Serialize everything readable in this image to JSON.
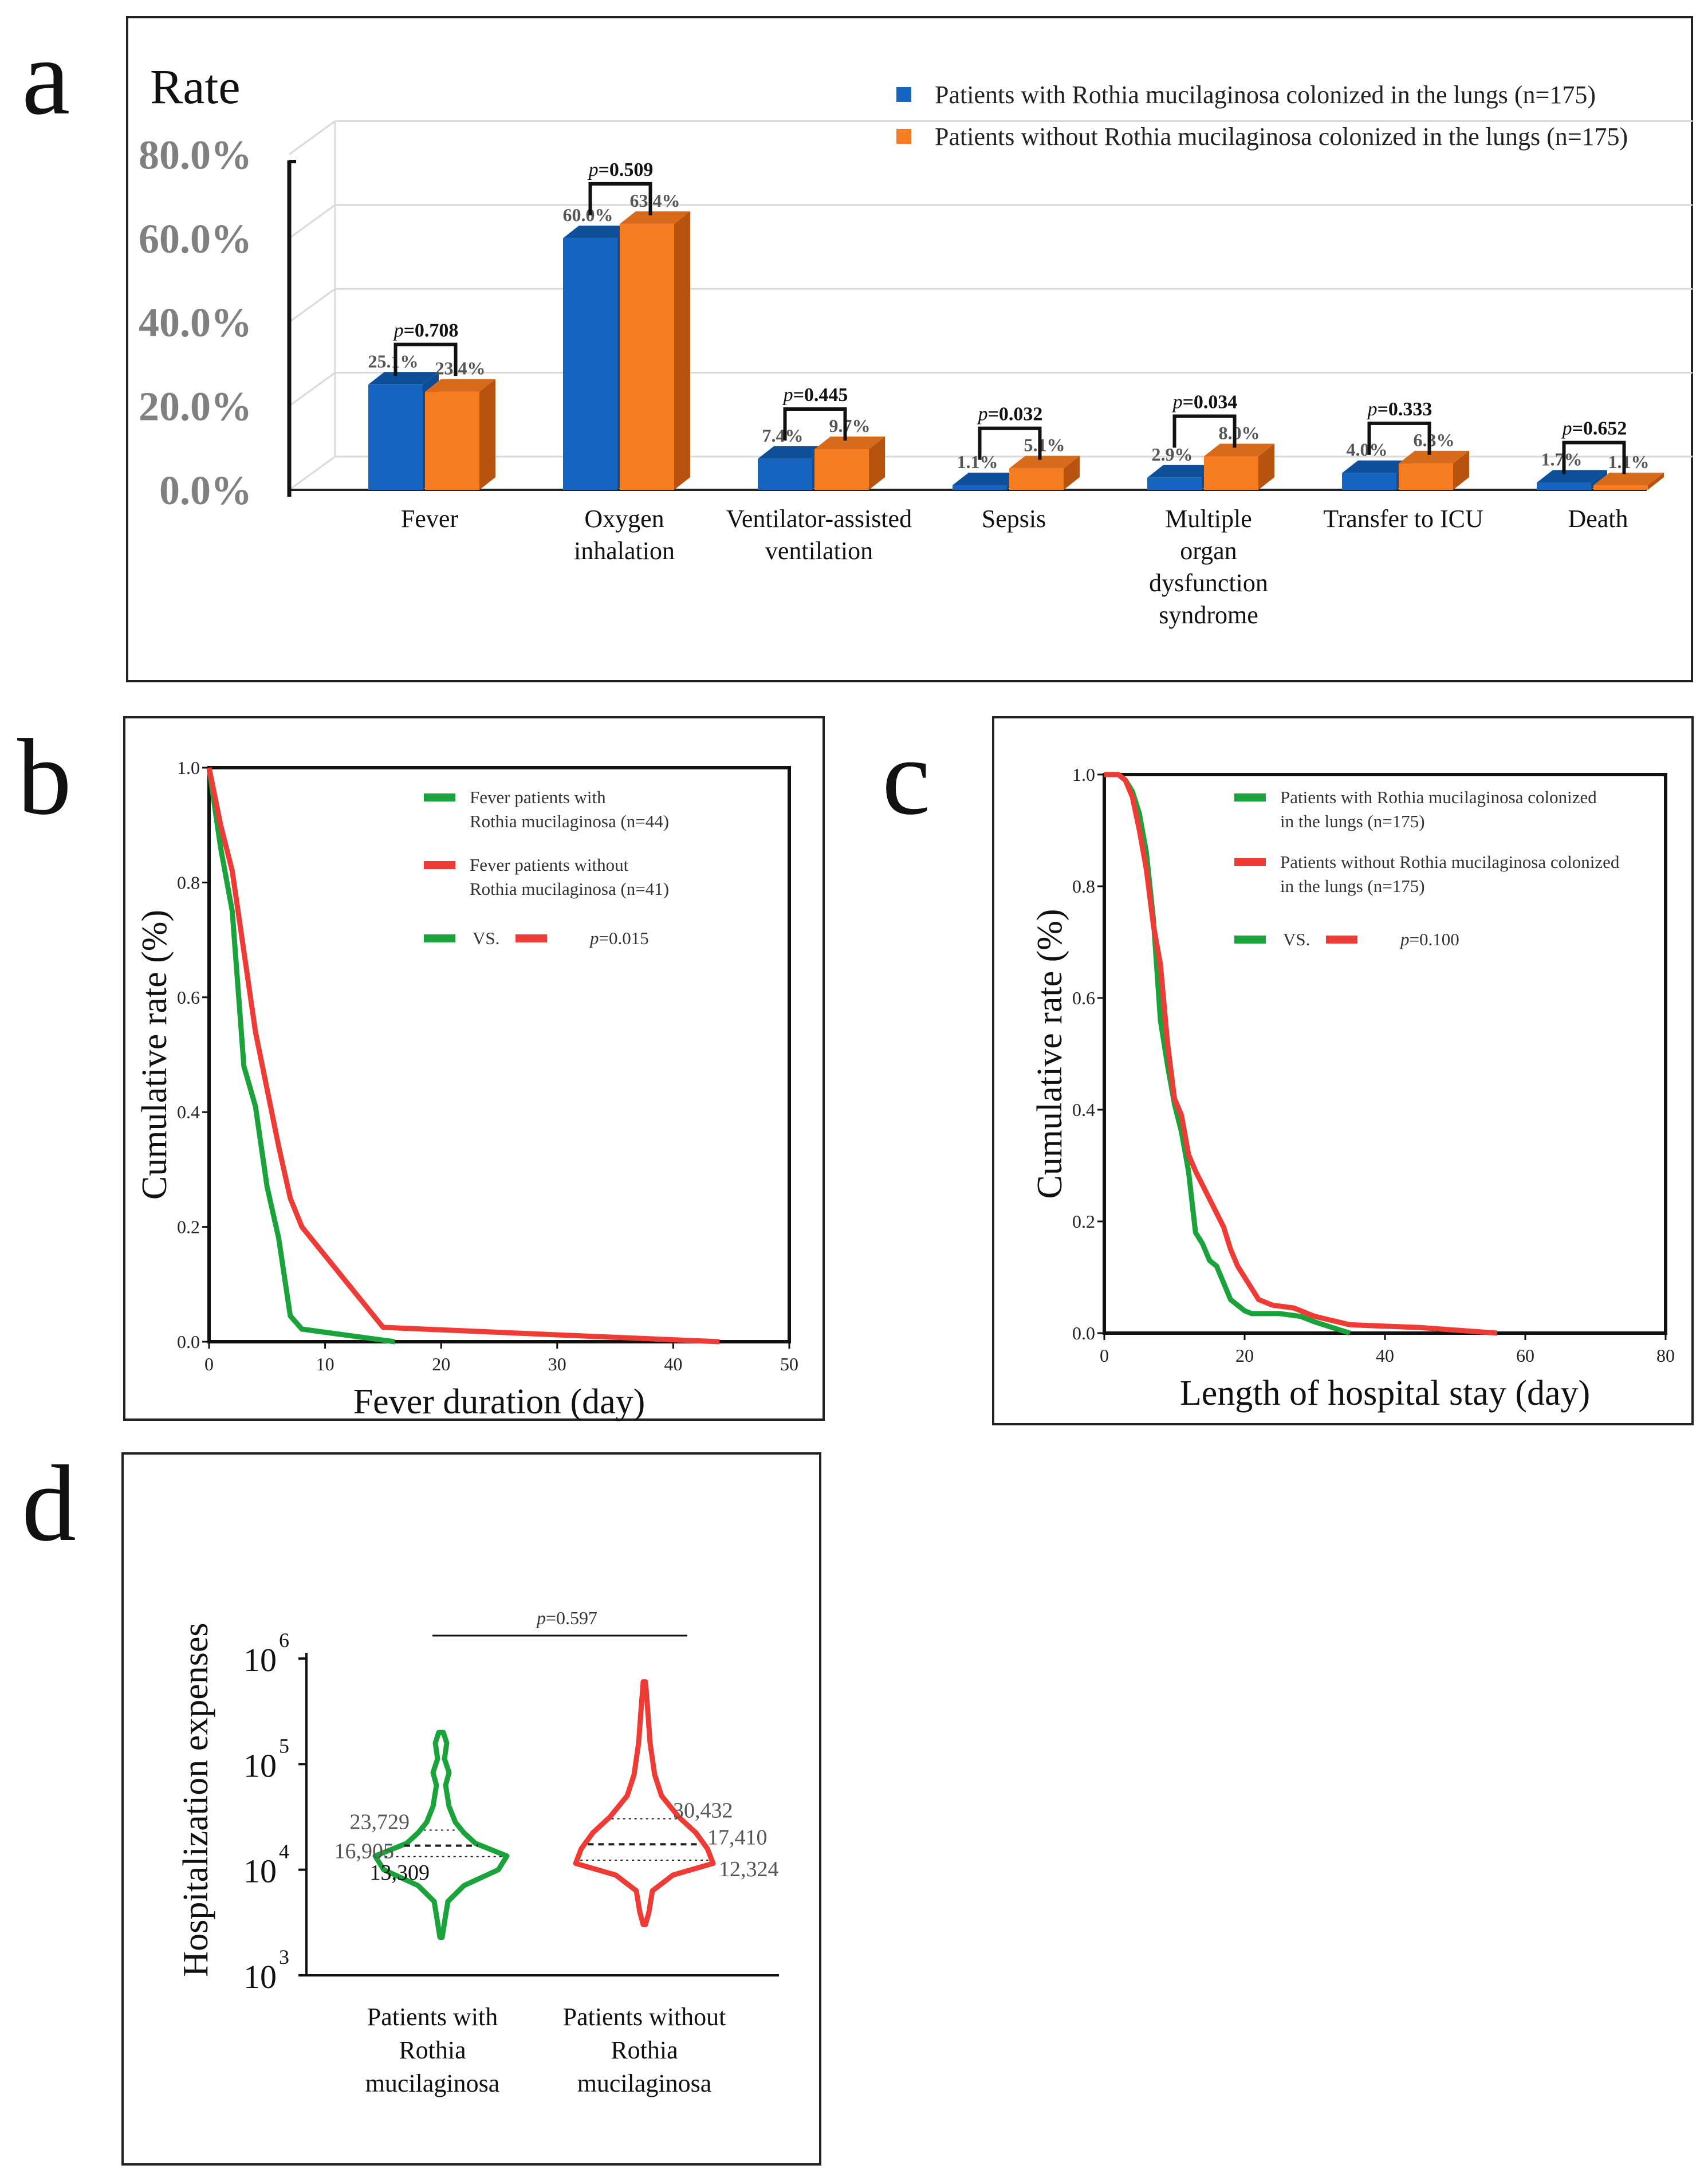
{
  "panels": {
    "a": "a",
    "b": "b",
    "c": "c",
    "d": "d"
  },
  "colors": {
    "blue": "#1565c0",
    "blue_top": "#0d4c94",
    "orange": "#f57c20",
    "orange_dark": "#b8520f",
    "green": "#1aa33a",
    "red": "#ef3b35"
  },
  "chart_data": [
    {
      "type": "bar",
      "y_title": "Rate",
      "yticks": [
        "0.0%",
        "20.0%",
        "40.0%",
        "60.0%",
        "80.0%"
      ],
      "ylim": [
        0,
        80
      ],
      "categories": [
        "Fever",
        "Oxygen inhalation",
        "Ventilator-assisted ventilation",
        "Sepsis",
        "Multiple organ dysfunction syndrome",
        "Transfer to ICU",
        "Death"
      ],
      "category_lines": [
        [
          "Fever"
        ],
        [
          "Oxygen",
          "inhalation"
        ],
        [
          "Ventilator-assisted",
          "ventilation"
        ],
        [
          "Sepsis"
        ],
        [
          "Multiple",
          "organ",
          "dysfunction",
          "syndrome"
        ],
        [
          "Transfer to ICU"
        ],
        [
          "Death"
        ]
      ],
      "series": [
        {
          "name": "Patients with Rothia mucilaginosa colonized in the lungs (n=175)",
          "values": [
            25.1,
            60.0,
            7.4,
            1.1,
            2.9,
            4.0,
            1.7
          ],
          "labels": [
            "25.1%",
            "60.0%",
            "7.4%",
            "1.1%",
            "2.9%",
            "4.0%",
            "1.7%"
          ]
        },
        {
          "name": "Patients without Rothia mucilaginosa colonized in the lungs (n=175)",
          "values": [
            23.4,
            63.4,
            9.7,
            5.1,
            8.0,
            6.3,
            1.1
          ],
          "labels": [
            "23.4%",
            "63.4%",
            "9.7%",
            "5.1%",
            "8.0%",
            "6.3%",
            "1.1%"
          ]
        }
      ],
      "p_values": [
        "0.708",
        "0.509",
        "0.445",
        "0.032",
        "0.034",
        "0.333",
        "0.652"
      ],
      "p_prefix": "p",
      "p_eq": "=",
      "legend_position": "top-right",
      "grid": true
    },
    {
      "type": "line",
      "xlabel": "Fever duration (day)",
      "ylabel": "Cumulative rate (%)",
      "xlim": [
        0,
        50
      ],
      "ylim": [
        0,
        1.0
      ],
      "xticks": [
        "0",
        "10",
        "20",
        "30",
        "40",
        "50"
      ],
      "yticks": [
        "0.0",
        "0.2",
        "0.4",
        "0.6",
        "0.8",
        "1.0"
      ],
      "series": [
        {
          "name_lines": [
            "Fever patients with",
            "Rothia mucilaginosa (n=44)"
          ],
          "x": [
            0,
            1,
            2,
            3,
            4,
            5,
            6,
            7,
            8,
            16
          ],
          "y": [
            1.0,
            0.86,
            0.75,
            0.48,
            0.41,
            0.27,
            0.18,
            0.045,
            0.022,
            0.0
          ]
        },
        {
          "name_lines": [
            "Fever patients without",
            "Rothia mucilaginosa (n=41)"
          ],
          "x": [
            0,
            1,
            2,
            3,
            4,
            5,
            6,
            7,
            8,
            15,
            30,
            44
          ],
          "y": [
            1.0,
            0.9,
            0.82,
            0.68,
            0.54,
            0.44,
            0.34,
            0.25,
            0.2,
            0.025,
            0.012,
            0.0
          ]
        }
      ],
      "vs_label": "VS.",
      "p_text": "=0.015"
    },
    {
      "type": "line",
      "xlabel": "Length of hospital stay (day)",
      "ylabel": "Cumulative rate (%)",
      "xlim": [
        0,
        80
      ],
      "ylim": [
        0,
        1.0
      ],
      "xticks": [
        "0",
        "20",
        "40",
        "60",
        "80"
      ],
      "yticks": [
        "0.0",
        "0.2",
        "0.4",
        "0.6",
        "0.8",
        "1.0"
      ],
      "series": [
        {
          "name_lines": [
            "Patients with Rothia mucilaginosa colonized",
            "in the lungs (n=175)"
          ],
          "x": [
            0,
            2,
            3,
            4,
            5,
            6,
            7,
            8,
            9,
            10,
            11,
            12,
            13,
            14,
            15,
            16,
            17,
            18,
            19,
            20,
            21,
            25,
            28,
            30,
            35
          ],
          "y": [
            1.0,
            1.0,
            0.99,
            0.97,
            0.93,
            0.86,
            0.74,
            0.56,
            0.48,
            0.41,
            0.36,
            0.29,
            0.18,
            0.16,
            0.13,
            0.12,
            0.09,
            0.06,
            0.05,
            0.04,
            0.035,
            0.035,
            0.03,
            0.02,
            0.0
          ]
        },
        {
          "name_lines": [
            "Patients without Rothia mucilaginosa colonized",
            "in the lungs (n=175)"
          ],
          "x": [
            0,
            2,
            3,
            4,
            5,
            6,
            7,
            8,
            9,
            10,
            11,
            12,
            13,
            15,
            17,
            18,
            19,
            20,
            22,
            24,
            27,
            30,
            35,
            45,
            56
          ],
          "y": [
            1.0,
            1.0,
            0.99,
            0.96,
            0.9,
            0.83,
            0.73,
            0.66,
            0.52,
            0.42,
            0.39,
            0.32,
            0.29,
            0.24,
            0.19,
            0.15,
            0.12,
            0.1,
            0.06,
            0.05,
            0.045,
            0.03,
            0.015,
            0.01,
            0.0
          ]
        }
      ],
      "vs_label": "VS.",
      "p_text": "=0.100"
    },
    {
      "type": "violin",
      "ylabel": "Hospitalization expenses",
      "y_scale": "log",
      "ylim": [
        1000,
        1000000
      ],
      "yticks": [
        {
          "base": "10",
          "exp": "3"
        },
        {
          "base": "10",
          "exp": "4"
        },
        {
          "base": "10",
          "exp": "5"
        },
        {
          "base": "10",
          "exp": "6"
        }
      ],
      "groups": [
        {
          "label_lines": [
            "Patients with",
            "Rothia",
            "mucilaginosa"
          ],
          "min": 2300,
          "max": 200000,
          "q1": 13309,
          "median": 16905,
          "q3": 23729,
          "labels": {
            "q3": "23,729",
            "median": "16,905",
            "q1": "13,309"
          }
        },
        {
          "label_lines": [
            "Patients without",
            "Rothia",
            "mucilaginosa"
          ],
          "min": 3000,
          "max": 600000,
          "q1": 12324,
          "median": 17410,
          "q3": 30432,
          "labels": {
            "q3": "30,432",
            "median": "17,410",
            "q1": "12,324"
          }
        }
      ],
      "p_text": "=0.597"
    }
  ]
}
